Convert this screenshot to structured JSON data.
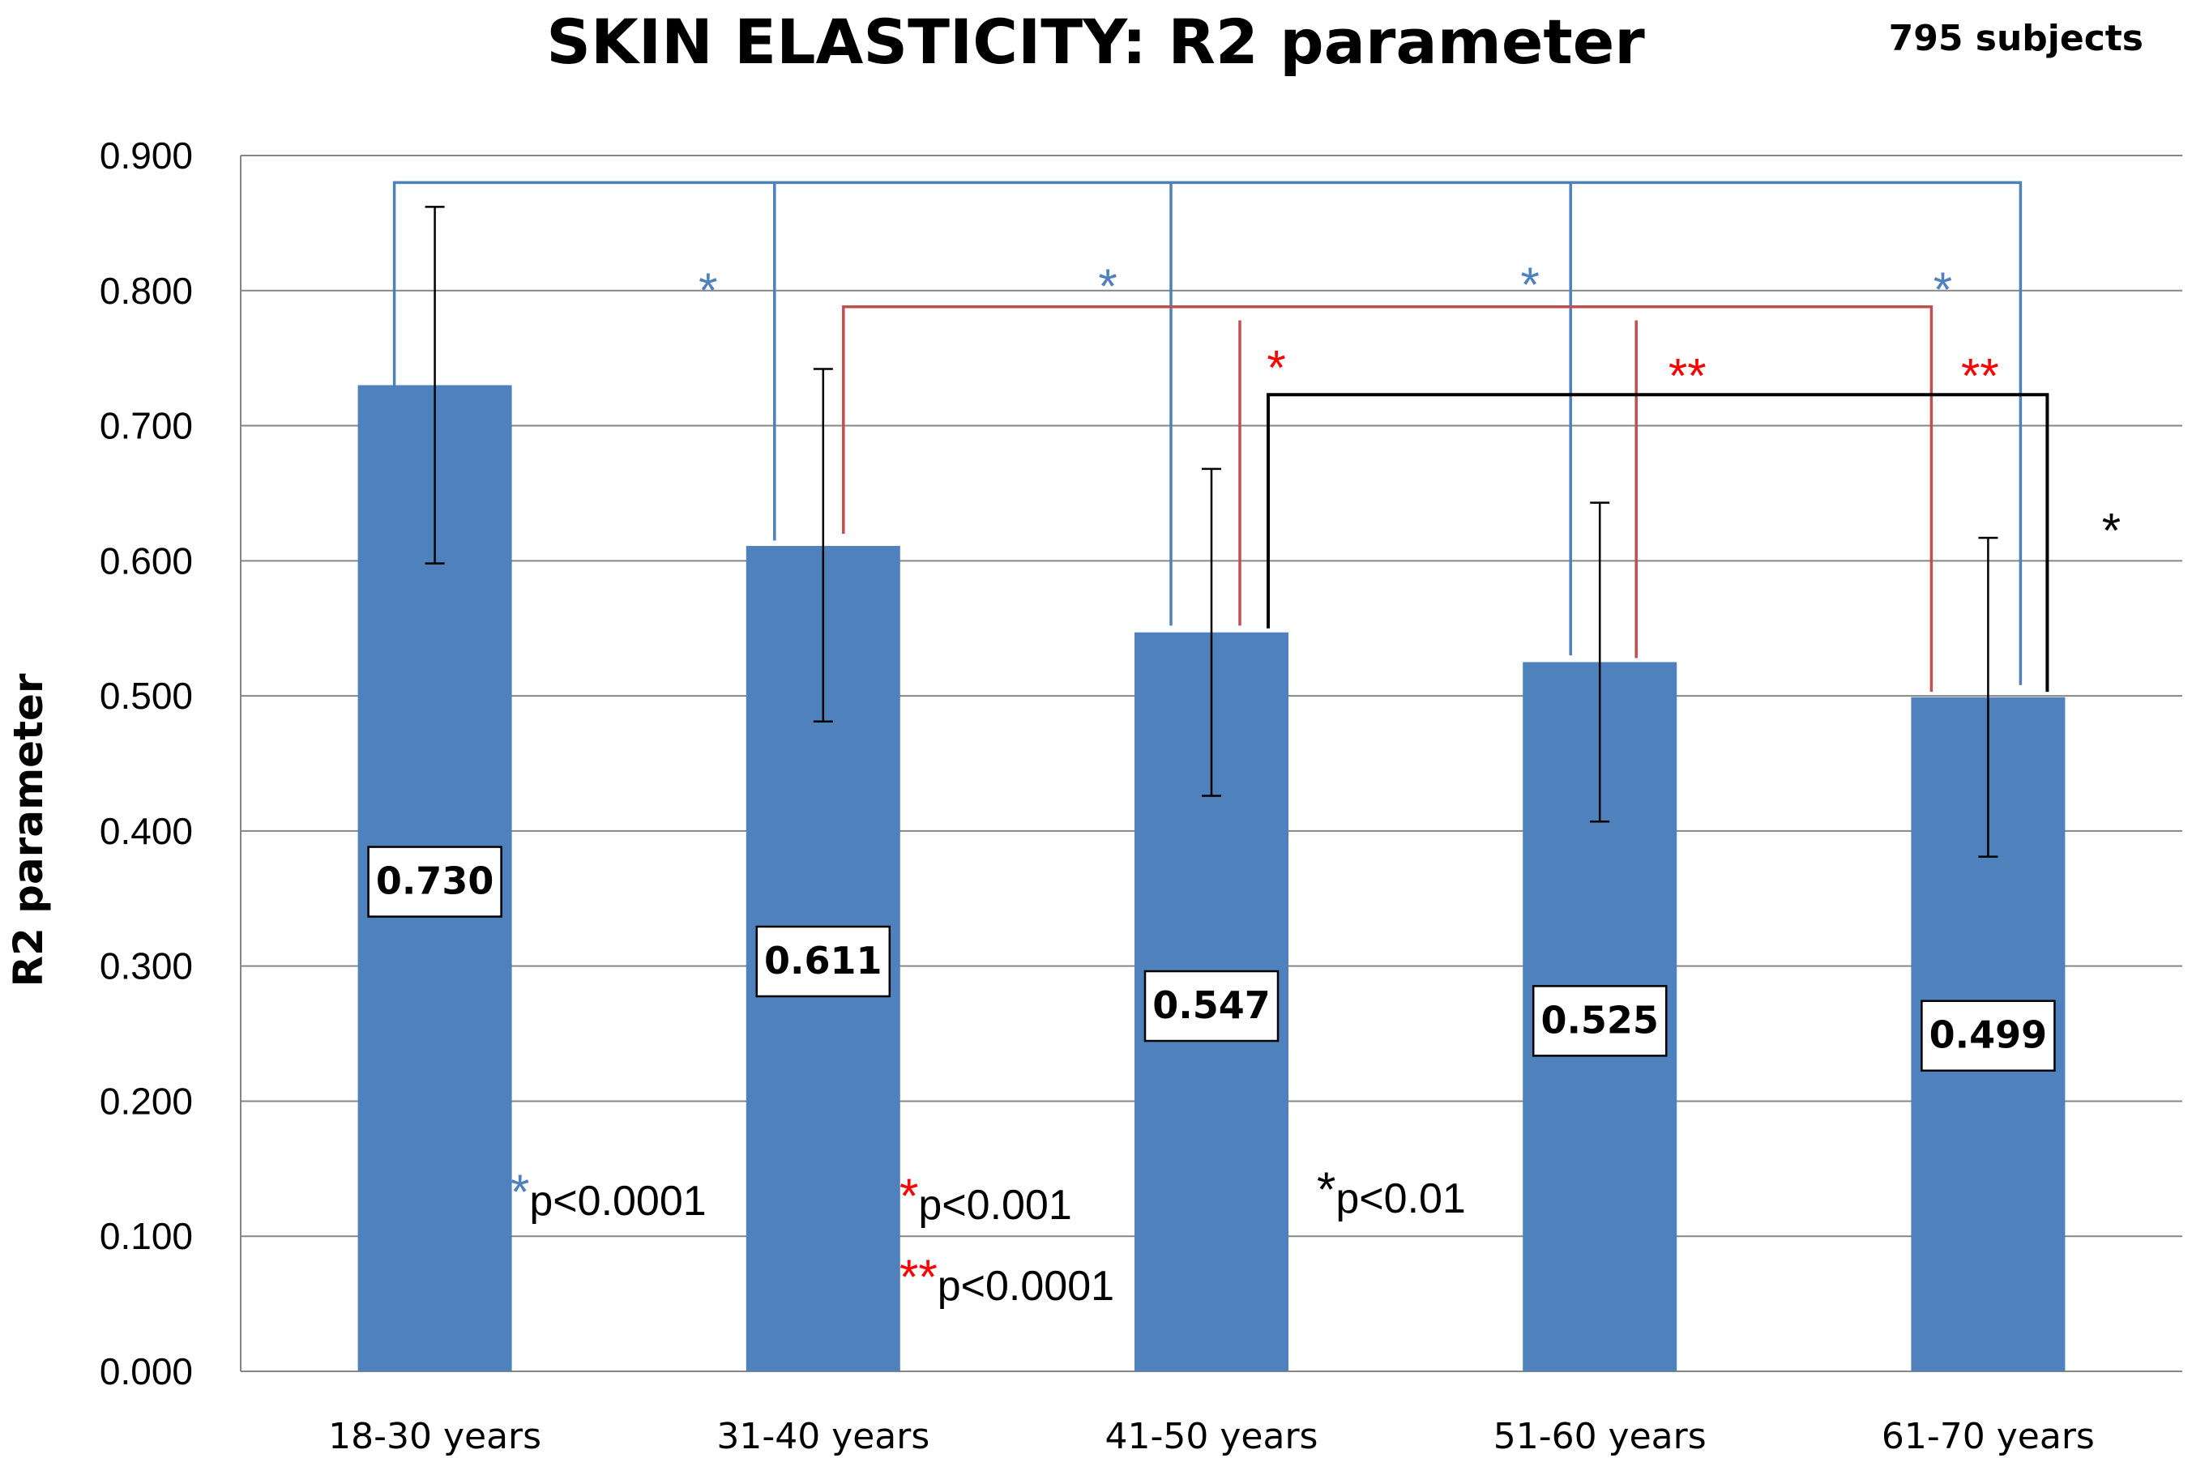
{
  "chart_data": {
    "type": "bar",
    "title": "SKIN ELASTICITY: R2 parameter",
    "subtitle": "795 subjects",
    "xlabel": "",
    "ylabel": "R2 parameter",
    "ylim": [
      0,
      0.9
    ],
    "ytick_labels": [
      "0.000",
      "0.100",
      "0.200",
      "0.300",
      "0.400",
      "0.500",
      "0.600",
      "0.700",
      "0.800",
      "0.900"
    ],
    "categories": [
      "18-30 years",
      "31-40 years",
      "41-50 years",
      "51-60 years",
      "61-70 years"
    ],
    "values": [
      0.73,
      0.611,
      0.547,
      0.525,
      0.499
    ],
    "value_labels": [
      "0.730",
      "0.611",
      "0.547",
      "0.525",
      "0.499"
    ],
    "error_bars": [
      {
        "low": 0.598,
        "high": 0.862
      },
      {
        "low": 0.481,
        "high": 0.742
      },
      {
        "low": 0.426,
        "high": 0.668
      },
      {
        "low": 0.407,
        "high": 0.643
      },
      {
        "low": 0.381,
        "high": 0.617
      }
    ],
    "bar_color": "#4F81BD",
    "grid": true,
    "significance": [
      {
        "color": "#4F81BD",
        "label": "*",
        "group_level": 0.88,
        "legs": [
          0.73,
          0.615,
          0.55,
          0.525,
          0.505
        ],
        "categories": [
          0,
          1,
          2,
          3,
          4
        ],
        "from": 0,
        "to": [
          1,
          2,
          3,
          4
        ]
      },
      {
        "color": "#C0504D",
        "label_color": "#FF0000",
        "labels": [
          "*",
          "**",
          "**"
        ],
        "group_level": 0.788,
        "from": 1,
        "to": [
          2,
          3,
          4
        ]
      },
      {
        "color": "#000000",
        "label": "*",
        "group_level": 0.723,
        "from": 2,
        "to": [
          4
        ]
      }
    ],
    "legend": [
      {
        "star": "*",
        "star_color": "#4F81BD",
        "text": "p<0.0001"
      },
      {
        "star": "*",
        "star_color": "#FF0000",
        "text": "p<0.001"
      },
      {
        "star": "**",
        "star_color": "#FF0000",
        "text": "p<0.0001"
      },
      {
        "star": "*",
        "star_color": "#000000",
        "text": "p<0.01"
      }
    ]
  }
}
